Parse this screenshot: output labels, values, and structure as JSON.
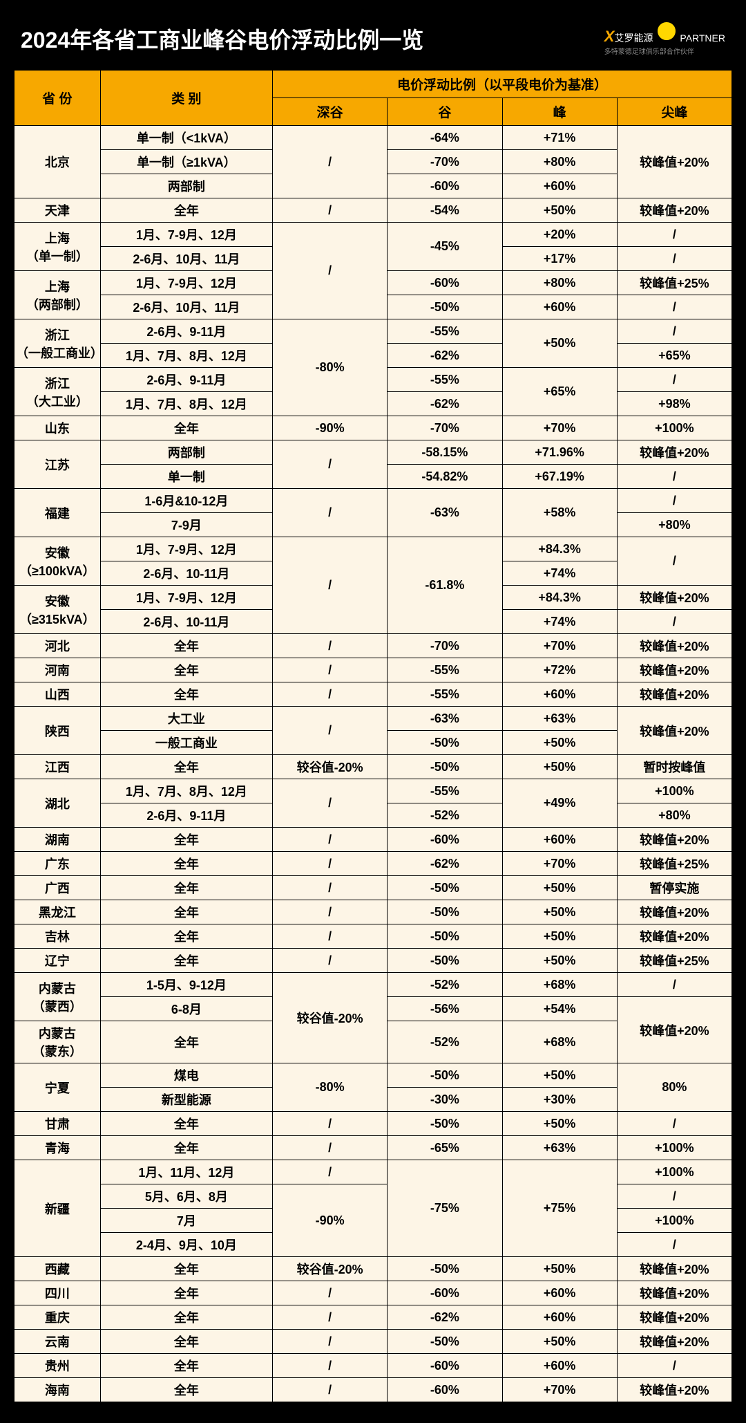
{
  "title": "2024年各省工商业峰谷电价浮动比例一览",
  "brand": {
    "x": "X",
    "name": "艾罗能源",
    "partner": "PARTNER",
    "sub": "多特蒙德足球俱乐部合作伙伴"
  },
  "headers": {
    "province": "省 份",
    "category": "类 别",
    "ratio_group": "电价浮动比例（以平段电价为基准）",
    "deep_valley": "深谷",
    "valley": "谷",
    "peak": "峰",
    "sharp_peak": "尖峰"
  },
  "colors": {
    "header_bg": "#f7a800",
    "cell_bg": "#fdf5e6",
    "border": "#000000",
    "page_bg": "#000000",
    "title_color": "#ffffff"
  },
  "rows": [
    {
      "province": "北京",
      "province_rowspan": 3,
      "category": "单一制（<1kVA）",
      "dv": "/",
      "dv_rowspan": 3,
      "v": "-64%",
      "p": "+71%",
      "sp": "较峰值+20%",
      "sp_rowspan": 3
    },
    {
      "category": "单一制（≥1kVA）",
      "v": "-70%",
      "p": "+80%"
    },
    {
      "category": "两部制",
      "v": "-60%",
      "p": "+60%"
    },
    {
      "province": "天津",
      "category": "全年",
      "dv": "/",
      "v": "-54%",
      "p": "+50%",
      "sp": "较峰值+20%"
    },
    {
      "province": "上海\n（单一制）",
      "province_rowspan": 2,
      "category": "1月、7-9月、12月",
      "dv": "/",
      "dv_rowspan": 4,
      "v": "-45%",
      "v_rowspan": 2,
      "p": "+20%",
      "sp": "/"
    },
    {
      "category": "2-6月、10月、11月",
      "p": "+17%",
      "sp": "/"
    },
    {
      "province": "上海\n（两部制）",
      "province_rowspan": 2,
      "category": "1月、7-9月、12月",
      "v": "-60%",
      "p": "+80%",
      "sp": "较峰值+25%"
    },
    {
      "category": "2-6月、10月、11月",
      "v": "-50%",
      "p": "+60%",
      "sp": "/"
    },
    {
      "province": "浙江\n（一般工商业）",
      "province_rowspan": 2,
      "category": "2-6月、9-11月",
      "dv": "-80%",
      "dv_rowspan": 4,
      "v": "-55%",
      "p": "+50%",
      "p_rowspan": 2,
      "sp": "/"
    },
    {
      "category": "1月、7月、8月、12月",
      "v": "-62%",
      "sp": "+65%"
    },
    {
      "province": "浙江\n（大工业）",
      "province_rowspan": 2,
      "category": "2-6月、9-11月",
      "v": "-55%",
      "p": "+65%",
      "p_rowspan": 2,
      "sp": "/"
    },
    {
      "category": "1月、7月、8月、12月",
      "v": "-62%",
      "sp": "+98%"
    },
    {
      "province": "山东",
      "category": "全年",
      "dv": "-90%",
      "v": "-70%",
      "p": "+70%",
      "sp": "+100%"
    },
    {
      "province": "江苏",
      "province_rowspan": 2,
      "category": "两部制",
      "dv": "/",
      "dv_rowspan": 2,
      "v": "-58.15%",
      "p": "+71.96%",
      "sp": "较峰值+20%"
    },
    {
      "category": "单一制",
      "v": "-54.82%",
      "p": "+67.19%",
      "sp": "/"
    },
    {
      "province": "福建",
      "province_rowspan": 2,
      "category": "1-6月&10-12月",
      "dv": "/",
      "dv_rowspan": 2,
      "v": "-63%",
      "v_rowspan": 2,
      "p": "+58%",
      "p_rowspan": 2,
      "sp": "/"
    },
    {
      "category": "7-9月",
      "sp": "+80%"
    },
    {
      "province": "安徽\n（≥100kVA）",
      "province_rowspan": 2,
      "category": "1月、7-9月、12月",
      "dv": "/",
      "dv_rowspan": 4,
      "v": "-61.8%",
      "v_rowspan": 4,
      "p": "+84.3%",
      "sp": "/",
      "sp_rowspan": 2
    },
    {
      "category": "2-6月、10-11月",
      "p": "+74%"
    },
    {
      "province": "安徽\n（≥315kVA）",
      "province_rowspan": 2,
      "category": "1月、7-9月、12月",
      "p": "+84.3%",
      "sp": "较峰值+20%"
    },
    {
      "category": "2-6月、10-11月",
      "p": "+74%",
      "sp": "/"
    },
    {
      "province": "河北",
      "category": "全年",
      "dv": "/",
      "v": "-70%",
      "p": "+70%",
      "sp": "较峰值+20%"
    },
    {
      "province": "河南",
      "category": "全年",
      "dv": "/",
      "v": "-55%",
      "p": "+72%",
      "sp": "较峰值+20%"
    },
    {
      "province": "山西",
      "category": "全年",
      "dv": "/",
      "v": "-55%",
      "p": "+60%",
      "sp": "较峰值+20%"
    },
    {
      "province": "陕西",
      "province_rowspan": 2,
      "category": "大工业",
      "dv": "/",
      "dv_rowspan": 2,
      "v": "-63%",
      "p": "+63%",
      "sp": "较峰值+20%",
      "sp_rowspan": 2
    },
    {
      "category": "一般工商业",
      "v": "-50%",
      "p": "+50%"
    },
    {
      "province": "江西",
      "category": "全年",
      "dv": "较谷值-20%",
      "v": "-50%",
      "p": "+50%",
      "sp": "暂时按峰值"
    },
    {
      "province": "湖北",
      "province_rowspan": 2,
      "category": "1月、7月、8月、12月",
      "dv": "/",
      "dv_rowspan": 2,
      "v": "-55%",
      "p": "+49%",
      "p_rowspan": 2,
      "sp": "+100%"
    },
    {
      "category": "2-6月、9-11月",
      "v": "-52%",
      "sp": "+80%"
    },
    {
      "province": "湖南",
      "category": "全年",
      "dv": "/",
      "v": "-60%",
      "p": "+60%",
      "sp": "较峰值+20%"
    },
    {
      "province": "广东",
      "category": "全年",
      "dv": "/",
      "v": "-62%",
      "p": "+70%",
      "sp": "较峰值+25%"
    },
    {
      "province": "广西",
      "category": "全年",
      "dv": "/",
      "v": "-50%",
      "p": "+50%",
      "sp": "暂停实施"
    },
    {
      "province": "黑龙江",
      "category": "全年",
      "dv": "/",
      "v": "-50%",
      "p": "+50%",
      "sp": "较峰值+20%"
    },
    {
      "province": "吉林",
      "category": "全年",
      "dv": "/",
      "v": "-50%",
      "p": "+50%",
      "sp": "较峰值+20%"
    },
    {
      "province": "辽宁",
      "category": "全年",
      "dv": "/",
      "v": "-50%",
      "p": "+50%",
      "sp": "较峰值+25%"
    },
    {
      "province": "内蒙古\n（蒙西）",
      "province_rowspan": 2,
      "category": "1-5月、9-12月",
      "dv": "较谷值-20%",
      "dv_rowspan": 3,
      "v": "-52%",
      "p": "+68%",
      "sp": "/"
    },
    {
      "category": "6-8月",
      "v": "-56%",
      "p": "+54%",
      "sp": "较峰值+20%",
      "sp_rowspan": 2
    },
    {
      "province": "内蒙古\n（蒙东）",
      "category": "全年",
      "v": "-52%",
      "p": "+68%"
    },
    {
      "province": "宁夏",
      "province_rowspan": 2,
      "category": "煤电",
      "dv": "-80%",
      "dv_rowspan": 2,
      "v": "-50%",
      "p": "+50%",
      "sp": "80%",
      "sp_rowspan": 2
    },
    {
      "category": "新型能源",
      "v": "-30%",
      "p": "+30%"
    },
    {
      "province": "甘肃",
      "category": "全年",
      "dv": "/",
      "v": "-50%",
      "p": "+50%",
      "sp": "/"
    },
    {
      "province": "青海",
      "category": "全年",
      "dv": "/",
      "v": "-65%",
      "p": "+63%",
      "sp": "+100%"
    },
    {
      "province": "新疆",
      "province_rowspan": 4,
      "category": "1月、11月、12月",
      "dv": "/",
      "v": "-75%",
      "v_rowspan": 4,
      "p": "+75%",
      "p_rowspan": 4,
      "sp": "+100%"
    },
    {
      "category": "5月、6月、8月",
      "dv": "-90%",
      "dv_rowspan": 3,
      "sp": "/"
    },
    {
      "category": "7月",
      "sp": "+100%"
    },
    {
      "category": "2-4月、9月、10月",
      "sp": "/"
    },
    {
      "province": "西藏",
      "category": "全年",
      "dv": "较谷值-20%",
      "v": "-50%",
      "p": "+50%",
      "sp": "较峰值+20%"
    },
    {
      "province": "四川",
      "category": "全年",
      "dv": "/",
      "v": "-60%",
      "p": "+60%",
      "sp": "较峰值+20%"
    },
    {
      "province": "重庆",
      "category": "全年",
      "dv": "/",
      "v": "-62%",
      "p": "+60%",
      "sp": "较峰值+20%"
    },
    {
      "province": "云南",
      "category": "全年",
      "dv": "/",
      "v": "-50%",
      "p": "+50%",
      "sp": "较峰值+20%"
    },
    {
      "province": "贵州",
      "category": "全年",
      "dv": "/",
      "v": "-60%",
      "p": "+60%",
      "sp": "/"
    },
    {
      "province": "海南",
      "category": "全年",
      "dv": "/",
      "v": "-60%",
      "p": "+70%",
      "sp": "较峰值+20%"
    }
  ]
}
